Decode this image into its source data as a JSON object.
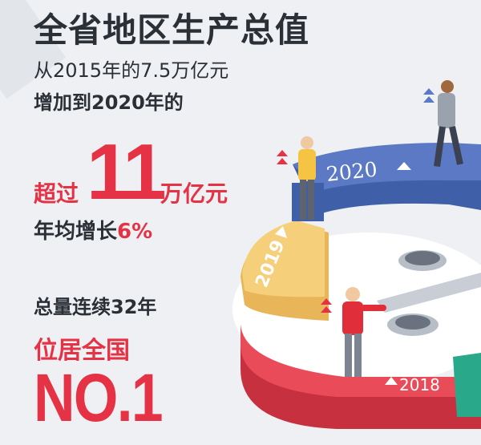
{
  "headline": {
    "title": "全省地区生产总值",
    "line1": "从2015年的7.5万亿元",
    "line2": "增加到2020年的",
    "over": "超过",
    "big_number": "11",
    "unit": "万亿元",
    "growth_prefix": "年均增长",
    "growth_value": "6%",
    "continuous": "总量连续32年",
    "rank_label": "位居全国",
    "rank": "NO.1"
  },
  "rings": [
    {
      "year": "2020",
      "color": "#5b79c4"
    },
    {
      "year": "2019",
      "color": "#f6cf7a"
    },
    {
      "year": "2018",
      "color": "#ea4b58"
    }
  ],
  "colors": {
    "accent": "#e53345",
    "text": "#2b2f36",
    "background": "#eef0f4"
  }
}
